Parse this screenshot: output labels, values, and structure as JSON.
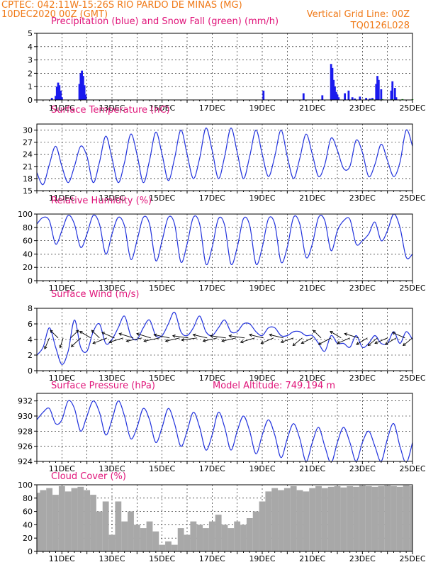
{
  "header": {
    "line1_left": "CPTEC:   042:11W-15:26S  RIO PARDO DE MINAS (MG)",
    "line2_left": "10DEC2020 00Z (GMT)",
    "line2_right": "Vertical Grid Line: 00Z",
    "line3_right": "TQ0126L028"
  },
  "colors": {
    "header": "#f07a18",
    "title": "#e0157a",
    "series_line": "#2233dd",
    "precip_bar": "#1a1aee",
    "snow_bar": "#22aa22",
    "cloud_bar": "#a8a8a8"
  },
  "chart_data": [
    {
      "id": "precip",
      "type": "bar",
      "title": "Precipitation (blue) and Snow Fall (green) (mm/h)",
      "ylim": [
        0,
        5
      ],
      "yticks": [
        "0",
        "1",
        "2",
        "3",
        "4",
        "5"
      ],
      "xlim": [
        10,
        25
      ],
      "xticks": [
        "11DEC",
        "13DEC",
        "15DEC",
        "17DEC",
        "19DEC",
        "21DEC",
        "23DEC",
        "25DEC"
      ],
      "series": [
        {
          "name": "Precipitation",
          "x": [
            10.6,
            10.75,
            10.8,
            10.85,
            10.9,
            10.95,
            11.0,
            11.7,
            11.75,
            11.8,
            11.85,
            11.9,
            11.95,
            19.05,
            20.65,
            21.4,
            21.75,
            21.8,
            21.85,
            21.9,
            21.95,
            22.0,
            22.05,
            22.3,
            22.45,
            22.6,
            22.7,
            22.9,
            23.15,
            23.3,
            23.4,
            23.55,
            23.6,
            23.65,
            23.75,
            24.15,
            24.2,
            24.3,
            24.35
          ],
          "values": [
            0.15,
            0.3,
            1.0,
            1.3,
            1.1,
            0.7,
            0.2,
            1.2,
            2.0,
            2.2,
            1.8,
            1.1,
            0.4,
            0.7,
            0.5,
            0.35,
            2.7,
            2.4,
            1.5,
            1.0,
            0.6,
            0.4,
            0.2,
            0.5,
            0.7,
            0.2,
            0.1,
            0.25,
            0.15,
            0.1,
            0.15,
            1.2,
            1.8,
            1.5,
            0.8,
            0.7,
            1.4,
            0.9,
            0.2
          ]
        },
        {
          "name": "Snow Fall",
          "x": [
            23.4,
            23.8,
            24.2,
            24.6,
            25.0
          ],
          "values": [
            0.05,
            0.06,
            0.05,
            0.06,
            0.05
          ]
        }
      ]
    },
    {
      "id": "temperature",
      "type": "line",
      "title": "Surface Temperature (nC)",
      "ylim": [
        15,
        31.5
      ],
      "yticks": [
        "15",
        "18",
        "21",
        "24",
        "27",
        "30"
      ],
      "xlim": [
        10,
        25
      ],
      "xticks": [
        "11DEC",
        "13DEC",
        "15DEC",
        "17DEC",
        "19DEC",
        "21DEC",
        "23DEC",
        "25DEC"
      ],
      "series": [
        {
          "name": "Surface Temperature",
          "x": [
            10.0,
            10.25,
            10.5,
            10.75,
            11.0,
            11.25,
            11.5,
            11.75,
            12.0,
            12.25,
            12.5,
            12.75,
            13.0,
            13.25,
            13.5,
            13.75,
            14.0,
            14.25,
            14.5,
            14.75,
            15.0,
            15.25,
            15.5,
            15.75,
            16.0,
            16.25,
            16.5,
            16.75,
            17.0,
            17.25,
            17.5,
            17.75,
            18.0,
            18.25,
            18.5,
            18.75,
            19.0,
            19.25,
            19.5,
            19.75,
            20.0,
            20.25,
            20.5,
            20.75,
            21.0,
            21.25,
            21.5,
            21.75,
            22.0,
            22.25,
            22.5,
            22.75,
            23.0,
            23.25,
            23.5,
            23.75,
            24.0,
            24.25,
            24.5,
            24.75,
            25.0
          ],
          "values": [
            19.5,
            16.5,
            21.5,
            26.0,
            21.0,
            17.0,
            21.0,
            26.0,
            23.5,
            17.0,
            22.0,
            28.5,
            23.0,
            17.0,
            22.0,
            29.0,
            24.0,
            17.0,
            22.5,
            29.5,
            24.0,
            17.5,
            23.0,
            30.0,
            24.0,
            18.0,
            23.0,
            30.5,
            25.0,
            18.0,
            23.5,
            30.5,
            24.5,
            18.0,
            23.5,
            30.0,
            24.0,
            18.5,
            23.5,
            30.0,
            23.5,
            18.0,
            23.0,
            29.0,
            24.0,
            18.5,
            21.5,
            28.0,
            25.0,
            20.5,
            21.0,
            27.5,
            24.5,
            18.5,
            21.5,
            26.5,
            22.5,
            18.5,
            22.0,
            30.0,
            26.0
          ]
        }
      ]
    },
    {
      "id": "humidity",
      "type": "line",
      "title": "Relative Humidity (%)",
      "ylim": [
        0,
        100
      ],
      "yticks": [
        "0",
        "20",
        "40",
        "60",
        "80",
        "100"
      ],
      "xlim": [
        10,
        25
      ],
      "xticks": [
        "11DEC",
        "13DEC",
        "15DEC",
        "17DEC",
        "19DEC",
        "21DEC",
        "23DEC",
        "25DEC"
      ],
      "series": [
        {
          "name": "Relative Humidity",
          "x": [
            10.0,
            10.25,
            10.5,
            10.75,
            11.0,
            11.25,
            11.5,
            11.75,
            12.0,
            12.25,
            12.5,
            12.75,
            13.0,
            13.25,
            13.5,
            13.75,
            14.0,
            14.25,
            14.5,
            14.75,
            15.0,
            15.25,
            15.5,
            15.75,
            16.0,
            16.25,
            16.5,
            16.75,
            17.0,
            17.25,
            17.5,
            17.75,
            18.0,
            18.25,
            18.5,
            18.75,
            19.0,
            19.25,
            19.5,
            19.75,
            20.0,
            20.25,
            20.5,
            20.75,
            21.0,
            21.25,
            21.5,
            21.75,
            22.0,
            22.25,
            22.5,
            22.75,
            23.0,
            23.25,
            23.5,
            23.75,
            24.0,
            24.25,
            24.5,
            24.75,
            25.0
          ],
          "values": [
            85,
            95,
            90,
            55,
            75,
            98,
            85,
            50,
            70,
            98,
            85,
            40,
            70,
            95,
            82,
            32,
            60,
            95,
            85,
            30,
            60,
            95,
            85,
            28,
            55,
            95,
            85,
            25,
            50,
            93,
            83,
            25,
            50,
            93,
            83,
            25,
            50,
            93,
            85,
            28,
            50,
            95,
            85,
            35,
            55,
            95,
            90,
            45,
            75,
            90,
            92,
            55,
            60,
            70,
            88,
            60,
            75,
            100,
            80,
            35,
            40
          ]
        }
      ]
    },
    {
      "id": "wind",
      "type": "line",
      "title": "Surface Wind (m/s)",
      "ylim": [
        0,
        8
      ],
      "yticks": [
        "0",
        "2",
        "4",
        "6",
        "8"
      ],
      "xlim": [
        10,
        25
      ],
      "xticks": [
        "11DEC",
        "13DEC",
        "15DEC",
        "17DEC",
        "19DEC",
        "21DEC",
        "23DEC",
        "25DEC"
      ],
      "series": [
        {
          "name": "Surface Wind",
          "x": [
            10.0,
            10.25,
            10.5,
            10.75,
            11.0,
            11.25,
            11.5,
            11.75,
            12.0,
            12.25,
            12.5,
            12.75,
            13.0,
            13.25,
            13.5,
            13.75,
            14.0,
            14.25,
            14.5,
            14.75,
            15.0,
            15.25,
            15.5,
            15.75,
            16.0,
            16.25,
            16.5,
            16.75,
            17.0,
            17.25,
            17.5,
            17.75,
            18.0,
            18.25,
            18.5,
            18.75,
            19.0,
            19.25,
            19.5,
            19.75,
            20.0,
            20.25,
            20.5,
            20.75,
            21.0,
            21.25,
            21.5,
            21.75,
            22.0,
            22.25,
            22.5,
            22.75,
            23.0,
            23.25,
            23.5,
            23.75,
            24.0,
            24.25,
            24.5,
            24.75,
            25.0
          ],
          "values": [
            2.0,
            3.0,
            5.5,
            3.0,
            0.8,
            2.5,
            6.5,
            3.0,
            2.5,
            5.0,
            6.0,
            3.5,
            4.0,
            5.5,
            7.0,
            4.5,
            4.0,
            5.5,
            6.5,
            4.5,
            4.5,
            6.0,
            7.5,
            5.0,
            4.5,
            5.5,
            7.0,
            5.0,
            4.5,
            5.5,
            6.5,
            5.0,
            5.0,
            6.0,
            6.0,
            5.0,
            4.5,
            5.5,
            5.5,
            4.5,
            4.5,
            5.0,
            5.0,
            4.5,
            4.5,
            3.5,
            2.5,
            4.5,
            3.5,
            3.5,
            3.0,
            4.5,
            3.0,
            3.5,
            4.5,
            3.5,
            3.5,
            5.0,
            3.5,
            5.0,
            4.0
          ]
        }
      ],
      "vectors": {
        "x": [
          10.5,
          10.85,
          11.05,
          11.35,
          11.75,
          12.15,
          12.5,
          12.8,
          13.1,
          13.45,
          13.85,
          14.2,
          14.55,
          14.9,
          15.3,
          15.7,
          16.05,
          16.4,
          16.8,
          17.2,
          17.55,
          17.95,
          18.3,
          18.7,
          19.05,
          19.45,
          19.85,
          20.25,
          20.6,
          21.0,
          21.35,
          21.75,
          22.15,
          22.5,
          22.85,
          23.2,
          23.6,
          24.0,
          24.35,
          24.7,
          25.0
        ],
        "u": [
          -0.3,
          -0.5,
          -0.2,
          0.5,
          -0.6,
          -0.7,
          -0.5,
          -0.9,
          -0.8,
          -0.9,
          -0.9,
          -1.0,
          -0.9,
          -1.0,
          -1.0,
          -0.9,
          -1.0,
          -1.0,
          -0.9,
          -0.9,
          -1.0,
          -0.9,
          -1.0,
          -0.9,
          -0.9,
          -0.8,
          -0.9,
          -0.8,
          -0.6,
          -0.7,
          -0.5,
          -0.8,
          -0.7,
          -0.8,
          -0.9,
          -0.7,
          -0.6,
          -0.8,
          -0.7,
          -0.8,
          -0.6
        ],
        "v": [
          -1.0,
          0.7,
          -0.9,
          0.7,
          -0.8,
          0.6,
          0.7,
          -0.5,
          0.5,
          -0.4,
          0.4,
          -0.3,
          0.4,
          -0.3,
          0.3,
          -0.3,
          0.2,
          -0.2,
          0.3,
          -0.3,
          0.2,
          -0.3,
          0.2,
          -0.4,
          0.3,
          -0.5,
          0.3,
          -0.4,
          -0.7,
          -0.5,
          0.7,
          -0.6,
          0.6,
          -0.5,
          0.4,
          -0.6,
          -0.7,
          -0.5,
          -0.6,
          0.5,
          -0.7
        ]
      }
    },
    {
      "id": "pressure",
      "type": "line",
      "title": "Surface Pressure (hPa)",
      "subtitle": "Model Altitude: 749.194 m",
      "ylim": [
        924,
        933
      ],
      "yticks": [
        "924",
        "926",
        "928",
        "930",
        "932"
      ],
      "xlim": [
        10,
        25
      ],
      "xticks": [
        "11DEC",
        "13DEC",
        "15DEC",
        "17DEC",
        "19DEC",
        "21DEC",
        "23DEC",
        "25DEC"
      ],
      "series": [
        {
          "name": "Surface Pressure",
          "x": [
            10.0,
            10.25,
            10.5,
            10.75,
            11.0,
            11.25,
            11.5,
            11.75,
            12.0,
            12.25,
            12.5,
            12.75,
            13.0,
            13.25,
            13.5,
            13.75,
            14.0,
            14.25,
            14.5,
            14.75,
            15.0,
            15.25,
            15.5,
            15.75,
            16.0,
            16.25,
            16.5,
            16.75,
            17.0,
            17.25,
            17.5,
            17.75,
            18.0,
            18.25,
            18.5,
            18.75,
            19.0,
            19.25,
            19.5,
            19.75,
            20.0,
            20.25,
            20.5,
            20.75,
            21.0,
            21.25,
            21.5,
            21.75,
            22.0,
            22.25,
            22.5,
            22.75,
            23.0,
            23.25,
            23.5,
            23.75,
            24.0,
            24.25,
            24.5,
            24.75,
            25.0
          ],
          "values": [
            929.5,
            930.5,
            931.0,
            929.0,
            929.5,
            932.0,
            931.0,
            928.0,
            930.0,
            932.0,
            930.5,
            927.5,
            929.5,
            932.0,
            930.0,
            927.0,
            928.5,
            931.0,
            929.5,
            926.5,
            928.5,
            931.0,
            929.0,
            926.0,
            928.0,
            930.5,
            928.5,
            925.5,
            927.5,
            930.5,
            928.5,
            925.5,
            928.0,
            930.0,
            928.0,
            925.0,
            927.5,
            929.5,
            927.5,
            924.5,
            927.0,
            929.0,
            927.0,
            924.0,
            926.5,
            928.5,
            926.0,
            923.8,
            926.5,
            928.5,
            926.5,
            924.0,
            926.5,
            928.0,
            926.0,
            924.0,
            927.0,
            929.0,
            926.0,
            923.8,
            926.5
          ]
        }
      ]
    },
    {
      "id": "cloud",
      "type": "bar",
      "title": "Cloud Cover (%)",
      "ylim": [
        0,
        100
      ],
      "yticks": [
        "0",
        "20",
        "40",
        "60",
        "80",
        "100"
      ],
      "xlim": [
        10,
        25
      ],
      "xticks": [
        "11DEC",
        "13DEC",
        "15DEC",
        "17DEC",
        "19DEC",
        "21DEC",
        "23DEC",
        "25DEC"
      ],
      "series": [
        {
          "name": "Cloud Cover",
          "x": [
            10.0,
            10.25,
            10.5,
            10.75,
            11.0,
            11.25,
            11.5,
            11.75,
            12.0,
            12.25,
            12.5,
            12.75,
            13.0,
            13.25,
            13.5,
            13.75,
            14.0,
            14.25,
            14.5,
            14.75,
            15.0,
            15.25,
            15.5,
            15.75,
            16.0,
            16.25,
            16.5,
            16.75,
            17.0,
            17.25,
            17.5,
            17.75,
            18.0,
            18.25,
            18.5,
            18.75,
            19.0,
            19.25,
            19.5,
            19.75,
            20.0,
            20.25,
            20.5,
            20.75,
            21.0,
            21.25,
            21.5,
            21.75,
            22.0,
            22.25,
            22.5,
            22.75,
            23.0,
            23.25,
            23.5,
            23.75,
            24.0,
            24.25,
            24.5,
            24.75,
            25.0
          ],
          "values": [
            88,
            92,
            95,
            85,
            98,
            90,
            95,
            97,
            92,
            85,
            60,
            75,
            25,
            75,
            45,
            60,
            40,
            35,
            45,
            30,
            10,
            15,
            10,
            35,
            25,
            45,
            40,
            35,
            45,
            55,
            40,
            35,
            45,
            40,
            50,
            60,
            75,
            90,
            95,
            92,
            95,
            98,
            92,
            90,
            95,
            98,
            95,
            97,
            98,
            96,
            98,
            97,
            99,
            98,
            97,
            98,
            99,
            98,
            97,
            99,
            98
          ]
        }
      ]
    }
  ]
}
